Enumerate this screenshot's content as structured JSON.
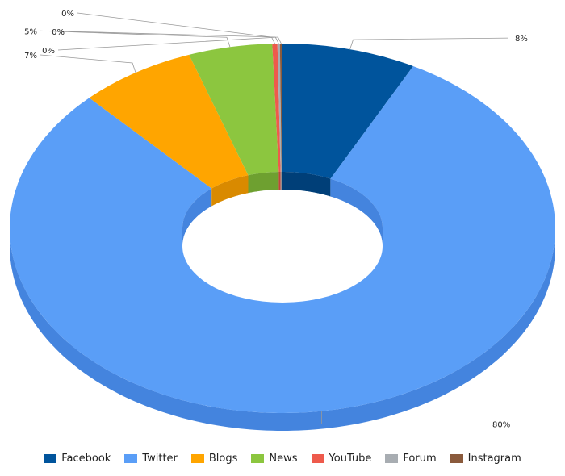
{
  "chart_data": {
    "type": "pie",
    "variant": "donut-3d",
    "title": "",
    "legend_position": "bottom",
    "labels": [
      "Facebook",
      "Twitter",
      "Blogs",
      "News",
      "YouTube",
      "Forum",
      "Instagram"
    ],
    "values": [
      8,
      80,
      7,
      5,
      0.3,
      0.15,
      0.15
    ],
    "display_labels": [
      "8%",
      "80%",
      "7%",
      "5%",
      "0%",
      "0%",
      "0%"
    ],
    "colors": [
      "#00549c",
      "#5a9ef7",
      "#ffa500",
      "#8cc63f",
      "#ee5a4c",
      "#a8adb2",
      "#8a5a3c"
    ],
    "side_colors": [
      "#003f78",
      "#4484de",
      "#d98a00",
      "#6ea030",
      "#c04438",
      "#8d9196",
      "#6e4530"
    ]
  }
}
